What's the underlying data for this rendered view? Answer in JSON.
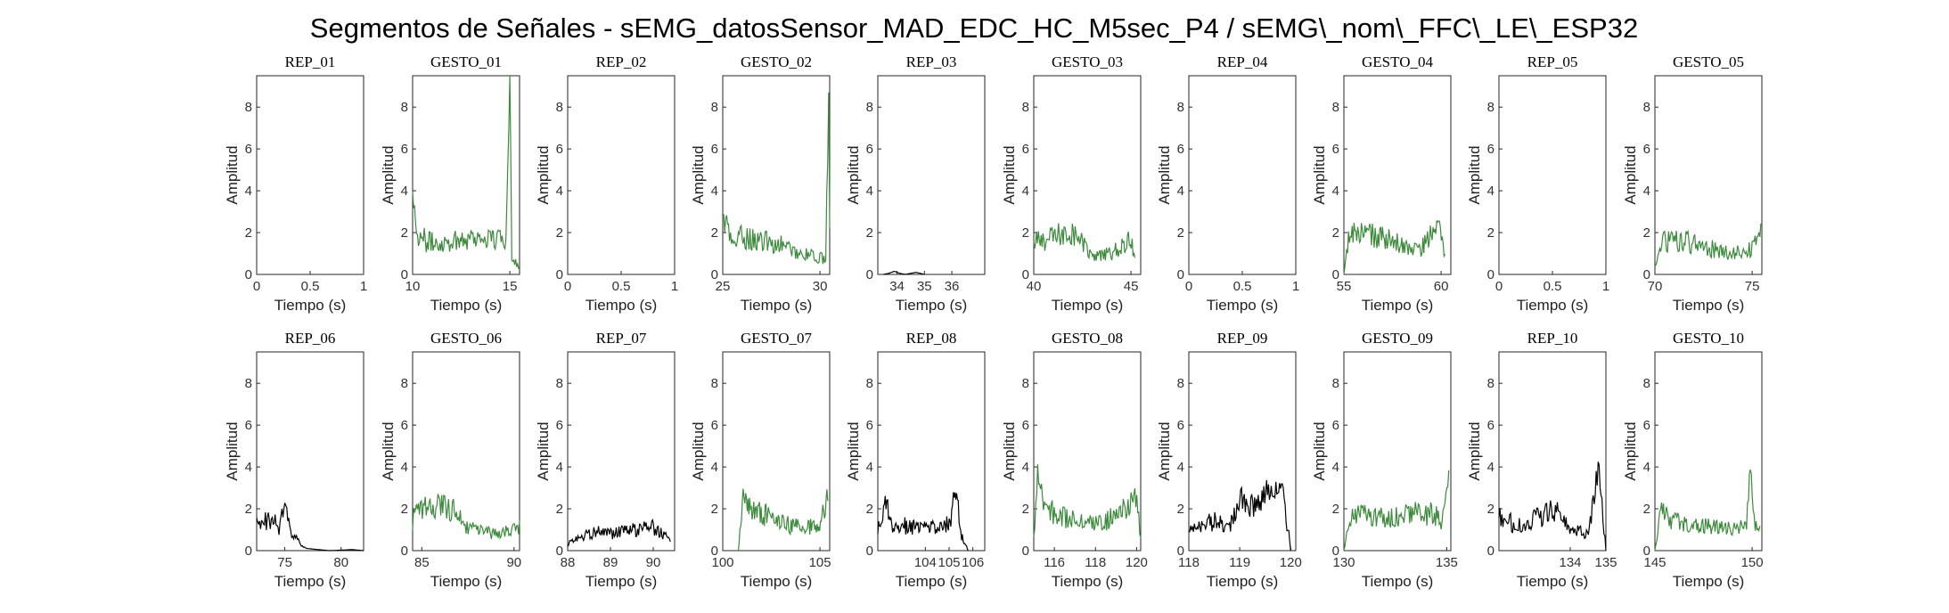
{
  "figure_title": "Segmentos de Señales - sEMG_datosSensor_MAD_EDC_HC_M5sec_P4 / sEMG\\_nom\\_FFC\\_LE\\_ESP32",
  "colors": {
    "rep": "#000000",
    "gesto": "#3d8a3d",
    "axis": "#262626"
  },
  "chart_data": [
    {
      "type": "line",
      "title": "REP_01",
      "xlabel": "Tiempo (s)",
      "ylabel": "Amplitud",
      "xlim": [
        0,
        1
      ],
      "xticks": [
        0,
        0.5,
        1
      ],
      "xtick_labels": [
        "0",
        "0.5",
        "1"
      ],
      "ylim": [
        0,
        9.5
      ],
      "yticks": [
        0,
        2,
        4,
        6,
        8
      ],
      "color_key": "rep",
      "keypoints": []
    },
    {
      "type": "line",
      "title": "GESTO_01",
      "xlabel": "Tiempo (s)",
      "ylabel": "Amplitud",
      "xlim": [
        10,
        15.5
      ],
      "xticks": [
        10,
        15
      ],
      "xtick_labels": [
        "10",
        "15"
      ],
      "ylim": [
        0,
        9.5
      ],
      "yticks": [
        0,
        2,
        4,
        6,
        8
      ],
      "color_key": "gesto",
      "keypoints": [
        [
          10,
          4.2
        ],
        [
          10.2,
          2.0
        ],
        [
          10.5,
          1.7
        ],
        [
          11,
          1.5
        ],
        [
          12,
          1.6
        ],
        [
          13,
          1.8
        ],
        [
          14,
          1.7
        ],
        [
          14.8,
          1.6
        ],
        [
          15.0,
          9.5
        ],
        [
          15.1,
          1.0
        ],
        [
          15.3,
          0.6
        ],
        [
          15.5,
          0.2
        ]
      ]
    },
    {
      "type": "line",
      "title": "REP_02",
      "xlabel": "Tiempo (s)",
      "ylabel": "Amplitud",
      "xlim": [
        0,
        1
      ],
      "xticks": [
        0,
        0.5,
        1
      ],
      "xtick_labels": [
        "0",
        "0.5",
        "1"
      ],
      "ylim": [
        0,
        9.5
      ],
      "yticks": [
        0,
        2,
        4,
        6,
        8
      ],
      "color_key": "rep",
      "keypoints": []
    },
    {
      "type": "line",
      "title": "GESTO_02",
      "xlabel": "Tiempo (s)",
      "ylabel": "Amplitud",
      "xlim": [
        25,
        30.5
      ],
      "xticks": [
        25,
        30
      ],
      "xtick_labels": [
        "25",
        "30"
      ],
      "ylim": [
        0,
        9.5
      ],
      "yticks": [
        0,
        2,
        4,
        6,
        8
      ],
      "color_key": "gesto",
      "keypoints": [
        [
          25,
          2.8
        ],
        [
          25.5,
          1.5
        ],
        [
          26,
          1.8
        ],
        [
          27,
          1.6
        ],
        [
          28,
          1.4
        ],
        [
          29,
          1.0
        ],
        [
          30,
          0.8
        ],
        [
          30.3,
          0.7
        ],
        [
          30.45,
          8.6
        ],
        [
          30.5,
          2.0
        ]
      ]
    },
    {
      "type": "line",
      "title": "REP_03",
      "xlabel": "Tiempo (s)",
      "ylabel": "Amplitud",
      "xlim": [
        33.3,
        37.2
      ],
      "xticks": [
        34,
        35,
        36
      ],
      "xtick_labels": [
        "34",
        "35",
        "36"
      ],
      "ylim": [
        0,
        9.5
      ],
      "yticks": [
        0,
        2,
        4,
        6,
        8
      ],
      "color_key": "rep",
      "keypoints": [
        [
          33.5,
          0
        ],
        [
          33.7,
          0.05
        ],
        [
          33.9,
          0.15
        ],
        [
          34.1,
          0.05
        ],
        [
          34.3,
          0
        ],
        [
          34.7,
          0.1
        ],
        [
          35.0,
          0
        ]
      ]
    },
    {
      "type": "line",
      "title": "GESTO_03",
      "xlabel": "Tiempo (s)",
      "ylabel": "Amplitud",
      "xlim": [
        40,
        45.5
      ],
      "xticks": [
        40,
        45
      ],
      "xtick_labels": [
        "40",
        "45"
      ],
      "ylim": [
        0,
        9.5
      ],
      "yticks": [
        0,
        2,
        4,
        6,
        8
      ],
      "color_key": "gesto",
      "keypoints": [
        [
          40,
          1.5
        ],
        [
          41,
          1.8
        ],
        [
          42,
          2.0
        ],
        [
          42.5,
          1.5
        ],
        [
          43,
          0.8
        ],
        [
          44,
          1.0
        ],
        [
          45,
          1.6
        ],
        [
          45.2,
          0.7
        ]
      ]
    },
    {
      "type": "line",
      "title": "REP_04",
      "xlabel": "Tiempo (s)",
      "ylabel": "Amplitud",
      "xlim": [
        0,
        1
      ],
      "xticks": [
        0,
        0.5,
        1
      ],
      "xtick_labels": [
        "0",
        "0.5",
        "1"
      ],
      "ylim": [
        0,
        9.5
      ],
      "yticks": [
        0,
        2,
        4,
        6,
        8
      ],
      "color_key": "rep",
      "keypoints": []
    },
    {
      "type": "line",
      "title": "GESTO_04",
      "xlabel": "Tiempo (s)",
      "ylabel": "Amplitud",
      "xlim": [
        55,
        60.5
      ],
      "xticks": [
        55,
        60
      ],
      "xtick_labels": [
        "55",
        "60"
      ],
      "ylim": [
        0,
        9.5
      ],
      "yticks": [
        0,
        2,
        4,
        6,
        8
      ],
      "color_key": "gesto",
      "keypoints": [
        [
          55,
          0
        ],
        [
          55.3,
          2.0
        ],
        [
          56,
          2.0
        ],
        [
          57,
          1.7
        ],
        [
          58,
          1.4
        ],
        [
          59,
          1.2
        ],
        [
          59.8,
          2.5
        ],
        [
          60.2,
          0.8
        ]
      ]
    },
    {
      "type": "line",
      "title": "REP_05",
      "xlabel": "Tiempo (s)",
      "ylabel": "Amplitud",
      "xlim": [
        0,
        1
      ],
      "xticks": [
        0,
        0.5,
        1
      ],
      "xtick_labels": [
        "0",
        "0.5",
        "1"
      ],
      "ylim": [
        0,
        9.5
      ],
      "yticks": [
        0,
        2,
        4,
        6,
        8
      ],
      "color_key": "rep",
      "keypoints": []
    },
    {
      "type": "line",
      "title": "GESTO_05",
      "xlabel": "Tiempo (s)",
      "ylabel": "Amplitud",
      "xlim": [
        70,
        75.5
      ],
      "xticks": [
        70,
        75
      ],
      "xtick_labels": [
        "70",
        "75"
      ],
      "ylim": [
        0,
        9.5
      ],
      "yticks": [
        0,
        2,
        4,
        6,
        8
      ],
      "color_key": "gesto",
      "keypoints": [
        [
          70,
          0.3
        ],
        [
          70.3,
          1.5
        ],
        [
          71,
          1.6
        ],
        [
          72,
          1.5
        ],
        [
          73,
          1.2
        ],
        [
          74,
          1.0
        ],
        [
          75,
          1.2
        ],
        [
          75.5,
          2.0
        ]
      ]
    },
    {
      "type": "line",
      "title": "REP_06",
      "xlabel": "Tiempo (s)",
      "ylabel": "Amplitud",
      "xlim": [
        72.5,
        82
      ],
      "xticks": [
        75,
        80
      ],
      "xtick_labels": [
        "75",
        "80"
      ],
      "ylim": [
        0,
        9.5
      ],
      "yticks": [
        0,
        2,
        4,
        6,
        8
      ],
      "color_key": "rep",
      "keypoints": [
        [
          72.5,
          1.2
        ],
        [
          73,
          1.4
        ],
        [
          74,
          1.5
        ],
        [
          74.5,
          1.0
        ],
        [
          75,
          2.2
        ],
        [
          75.5,
          0.8
        ],
        [
          76,
          0.6
        ],
        [
          76.5,
          0.2
        ],
        [
          77,
          0.1
        ],
        [
          79,
          0
        ],
        [
          81,
          0.05
        ],
        [
          82,
          0
        ]
      ]
    },
    {
      "type": "line",
      "title": "GESTO_06",
      "xlabel": "Tiempo (s)",
      "ylabel": "Amplitud",
      "xlim": [
        84.5,
        90.3
      ],
      "xticks": [
        85,
        90
      ],
      "xtick_labels": [
        "85",
        "90"
      ],
      "ylim": [
        0,
        9.5
      ],
      "yticks": [
        0,
        2,
        4,
        6,
        8
      ],
      "color_key": "gesto",
      "keypoints": [
        [
          84.5,
          1.5
        ],
        [
          85,
          2.0
        ],
        [
          86,
          2.2
        ],
        [
          87,
          1.8
        ],
        [
          87.5,
          1.0
        ],
        [
          88,
          1.0
        ],
        [
          89,
          0.8
        ],
        [
          90,
          1.0
        ],
        [
          90.3,
          1.2
        ]
      ]
    },
    {
      "type": "line",
      "title": "REP_07",
      "xlabel": "Tiempo (s)",
      "ylabel": "Amplitud",
      "xlim": [
        88,
        90.5
      ],
      "xticks": [
        88,
        89,
        90
      ],
      "xtick_labels": [
        "88",
        "89",
        "90"
      ],
      "ylim": [
        0,
        9.5
      ],
      "yticks": [
        0,
        2,
        4,
        6,
        8
      ],
      "color_key": "rep",
      "keypoints": [
        [
          88,
          0.3
        ],
        [
          88.3,
          0.7
        ],
        [
          88.7,
          0.9
        ],
        [
          89,
          0.8
        ],
        [
          89.5,
          1.0
        ],
        [
          90,
          1.1
        ],
        [
          90.4,
          0.5
        ]
      ]
    },
    {
      "type": "line",
      "title": "GESTO_07",
      "xlabel": "Tiempo (s)",
      "ylabel": "Amplitud",
      "xlim": [
        100,
        105.5
      ],
      "xticks": [
        100,
        105
      ],
      "xtick_labels": [
        "100",
        "105"
      ],
      "ylim": [
        0,
        9.5
      ],
      "yticks": [
        0,
        2,
        4,
        6,
        8
      ],
      "color_key": "gesto",
      "keypoints": [
        [
          100.8,
          0
        ],
        [
          101,
          2.5
        ],
        [
          101.5,
          2.0
        ],
        [
          102,
          1.8
        ],
        [
          103,
          1.3
        ],
        [
          104,
          1.1
        ],
        [
          105,
          1.2
        ],
        [
          105.4,
          2.8
        ]
      ]
    },
    {
      "type": "line",
      "title": "REP_08",
      "xlabel": "Tiempo (s)",
      "ylabel": "Amplitud",
      "xlim": [
        102,
        106.5
      ],
      "xticks": [
        104,
        105,
        106
      ],
      "xtick_labels": [
        "104",
        "105",
        "106"
      ],
      "ylim": [
        0,
        9.5
      ],
      "yticks": [
        0,
        2,
        4,
        6,
        8
      ],
      "color_key": "rep",
      "keypoints": [
        [
          102,
          1.0
        ],
        [
          102.3,
          2.5
        ],
        [
          102.6,
          1.0
        ],
        [
          103,
          1.2
        ],
        [
          104,
          1.1
        ],
        [
          105,
          1.3
        ],
        [
          105.3,
          3.0
        ],
        [
          105.5,
          0.8
        ],
        [
          105.8,
          0
        ]
      ]
    },
    {
      "type": "line",
      "title": "GESTO_08",
      "xlabel": "Tiempo (s)",
      "ylabel": "Amplitud",
      "xlim": [
        115,
        120.2
      ],
      "xticks": [
        116,
        118,
        120
      ],
      "xtick_labels": [
        "116",
        "118",
        "120"
      ],
      "ylim": [
        0,
        9.5
      ],
      "yticks": [
        0,
        2,
        4,
        6,
        8
      ],
      "color_key": "gesto",
      "keypoints": [
        [
          115,
          0.8
        ],
        [
          115.2,
          3.8
        ],
        [
          115.5,
          2.0
        ],
        [
          116,
          1.8
        ],
        [
          117,
          1.5
        ],
        [
          118,
          1.3
        ],
        [
          119,
          1.6
        ],
        [
          119.5,
          2.0
        ],
        [
          120,
          2.5
        ],
        [
          120.2,
          0.5
        ]
      ]
    },
    {
      "type": "line",
      "title": "REP_09",
      "xlabel": "Tiempo (s)",
      "ylabel": "Amplitud",
      "xlim": [
        118,
        120.1
      ],
      "xticks": [
        118,
        119,
        120
      ],
      "xtick_labels": [
        "118",
        "119",
        "120"
      ],
      "ylim": [
        0,
        9.5
      ],
      "yticks": [
        0,
        2,
        4,
        6,
        8
      ],
      "color_key": "rep",
      "keypoints": [
        [
          118,
          1.0
        ],
        [
          118.3,
          1.2
        ],
        [
          118.6,
          1.6
        ],
        [
          118.8,
          1.0
        ],
        [
          119,
          2.5
        ],
        [
          119.3,
          2.0
        ],
        [
          119.5,
          2.8
        ],
        [
          119.8,
          3.3
        ],
        [
          119.95,
          1.0
        ],
        [
          120,
          0
        ]
      ]
    },
    {
      "type": "line",
      "title": "GESTO_09",
      "xlabel": "Tiempo (s)",
      "ylabel": "Amplitud",
      "xlim": [
        130,
        135.2
      ],
      "xticks": [
        130,
        135
      ],
      "xtick_labels": [
        "130",
        "135"
      ],
      "ylim": [
        0,
        9.5
      ],
      "yticks": [
        0,
        2,
        4,
        6,
        8
      ],
      "color_key": "gesto",
      "keypoints": [
        [
          130,
          0
        ],
        [
          130.3,
          1.5
        ],
        [
          131,
          1.8
        ],
        [
          132,
          1.6
        ],
        [
          133,
          1.7
        ],
        [
          134,
          1.8
        ],
        [
          134.8,
          1.5
        ],
        [
          135.1,
          4.0
        ]
      ]
    },
    {
      "type": "line",
      "title": "REP_10",
      "xlabel": "Tiempo (s)",
      "ylabel": "Amplitud",
      "xlim": [
        132,
        135
      ],
      "xticks": [
        134,
        135
      ],
      "xtick_labels": [
        "134",
        "135"
      ],
      "ylim": [
        0,
        9.5
      ],
      "yticks": [
        0,
        2,
        4,
        6,
        8
      ],
      "color_key": "rep",
      "keypoints": [
        [
          132,
          1.6
        ],
        [
          132.5,
          1.2
        ],
        [
          133,
          1.5
        ],
        [
          133.5,
          2.0
        ],
        [
          134,
          1.0
        ],
        [
          134.5,
          0.8
        ],
        [
          134.8,
          4.0
        ],
        [
          135,
          0
        ]
      ]
    },
    {
      "type": "line",
      "title": "GESTO_10",
      "xlabel": "Tiempo (s)",
      "ylabel": "Amplitud",
      "xlim": [
        145,
        150.5
      ],
      "xticks": [
        145,
        150
      ],
      "xtick_labels": [
        "145",
        "150"
      ],
      "ylim": [
        0,
        9.5
      ],
      "yticks": [
        0,
        2,
        4,
        6,
        8
      ],
      "color_key": "gesto",
      "keypoints": [
        [
          145,
          0
        ],
        [
          145.3,
          1.8
        ],
        [
          146,
          1.4
        ],
        [
          147,
          1.3
        ],
        [
          148,
          1.1
        ],
        [
          149,
          1.0
        ],
        [
          149.7,
          1.2
        ],
        [
          149.9,
          4.3
        ],
        [
          150.1,
          1.5
        ],
        [
          150.4,
          1.2
        ]
      ]
    }
  ]
}
